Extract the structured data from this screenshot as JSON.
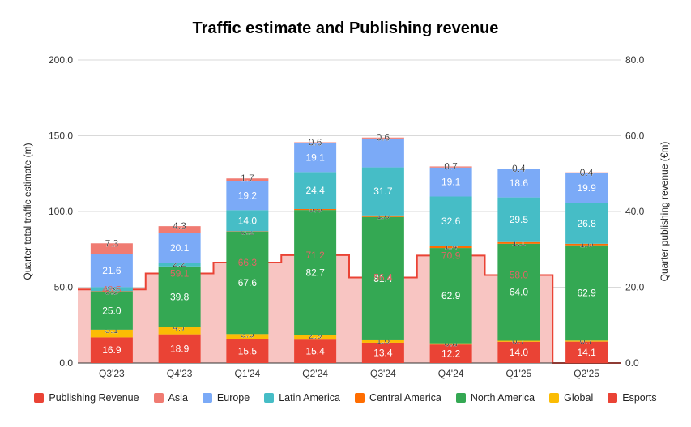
{
  "chart_data": {
    "type": "bar",
    "title": "Traffic estimate and Publishing revenue",
    "categories": [
      "Q3'23",
      "Q4'23",
      "Q1'24",
      "Q2'24",
      "Q3'24",
      "Q4'24",
      "Q1'25",
      "Q2'25"
    ],
    "ylabel": "Quarter total traffic estimate (m)",
    "ylabel_right": "Quarter publishing revenue (€m)",
    "ylim": [
      0,
      200
    ],
    "ylim_right": [
      0,
      80
    ],
    "yticks": [
      "0.0",
      "50.0",
      "100.0",
      "150.0",
      "200.0"
    ],
    "yticks_right": [
      "0.0",
      "20.0",
      "40.0",
      "60.0",
      "80.0"
    ],
    "grid": true,
    "legend_position": "bottom",
    "stack_order": [
      "Esports",
      "Global",
      "North America",
      "Central America",
      "Latin America",
      "Europe",
      "Asia"
    ],
    "series": [
      {
        "name": "Esports",
        "color": "#ea4335",
        "values": [
          16.9,
          18.9,
          15.5,
          15.4,
          13.4,
          12.2,
          14.0,
          14.1
        ]
      },
      {
        "name": "Global",
        "color": "#fbbc04",
        "values": [
          5.1,
          4.7,
          3.6,
          2.9,
          1.6,
          0.8,
          0.7,
          0.7
        ]
      },
      {
        "name": "North America",
        "color": "#34a853",
        "values": [
          25.0,
          39.8,
          67.6,
          82.7,
          81.4,
          62.9,
          64.0,
          62.9
        ]
      },
      {
        "name": "Central America",
        "color": "#ff6d01",
        "values": [
          0.3,
          0.3,
          0.2,
          0.6,
          1.0,
          1.4,
          1.1,
          1.0
        ]
      },
      {
        "name": "Latin America",
        "color": "#46bdc6",
        "values": [
          2.8,
          2.2,
          14.0,
          24.4,
          31.7,
          32.6,
          29.5,
          26.8
        ]
      },
      {
        "name": "Europe",
        "color": "#7baaf7",
        "values": [
          21.6,
          20.1,
          19.2,
          19.1,
          19.1,
          19.1,
          18.6,
          19.9
        ]
      },
      {
        "name": "Asia",
        "color": "#f07b72",
        "values": [
          7.3,
          4.3,
          1.7,
          0.6,
          0.6,
          0.7,
          0.4,
          0.4
        ]
      }
    ],
    "labels": [
      [
        "16.9",
        "5.1",
        "25.0",
        "0.3",
        "2.8",
        "21.6",
        "7.3"
      ],
      [
        "18.9",
        "4.7",
        "39.8",
        "",
        "2.2",
        "20.1",
        "4.3"
      ],
      [
        "15.5",
        "3.6",
        "67.6",
        "0.2",
        "14.0",
        "19.2",
        "1.7"
      ],
      [
        "15.4",
        "2.9",
        "82.7",
        "0.6",
        "24.4",
        "19.1",
        "0.6"
      ],
      [
        "13.4",
        "1.6",
        "81.4",
        "1.0",
        "31.7",
        "",
        "0.6"
      ],
      [
        "12.2",
        "0.8",
        "62.9",
        "1.4",
        "32.6",
        "19.1",
        "0.7"
      ],
      [
        "14.0",
        "0.7",
        "64.0",
        "1.1",
        "29.5",
        "18.6",
        "0.4"
      ],
      [
        "14.1",
        "0.7",
        "62.9",
        "1.0",
        "26.8",
        "19.9",
        "0.4"
      ]
    ],
    "revenue": {
      "name": "Publishing Revenue",
      "color": "#ea4335",
      "fill": "#f8c5c2",
      "values": [
        19.4,
        23.64,
        26.52,
        28.48,
        22.56,
        28.36,
        23.2,
        0
      ],
      "labels": [
        "48.5",
        "59.1",
        "66.3",
        "71.2",
        "56.4",
        "70.9",
        "58.0",
        ""
      ]
    },
    "legend": [
      {
        "label": "Publishing Revenue",
        "color": "#ea4335"
      },
      {
        "label": "Asia",
        "color": "#f07b72"
      },
      {
        "label": "Europe",
        "color": "#7baaf7"
      },
      {
        "label": "Latin America",
        "color": "#46bdc6"
      },
      {
        "label": "Central America",
        "color": "#ff6d01"
      },
      {
        "label": "North America",
        "color": "#34a853"
      },
      {
        "label": "Global",
        "color": "#fbbc04"
      },
      {
        "label": "Esports",
        "color": "#ea4335"
      }
    ]
  }
}
